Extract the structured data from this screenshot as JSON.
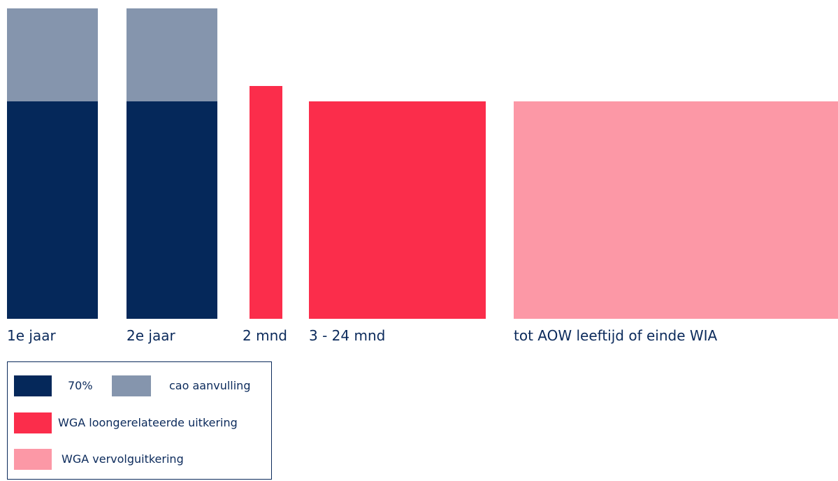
{
  "chart_data": {
    "type": "bar",
    "title": "",
    "xlabel": "",
    "ylabel": "",
    "categories": [
      "1e jaar",
      "2e jaar",
      "2 mnd",
      "3 - 24 mnd",
      "tot AOW leeftijd of einde WIA"
    ],
    "ylim": [
      0,
      100
    ],
    "grid": false,
    "legend_position": "bottom-left",
    "series": [
      {
        "key": "base",
        "color": "#05285a",
        "values": [
          70,
          70,
          null,
          null,
          null
        ]
      },
      {
        "key": "cao",
        "color": "#8595ad",
        "values": [
          30,
          30,
          null,
          null,
          null
        ]
      },
      {
        "key": "loon",
        "color": "#fb2d4b",
        "values": [
          null,
          null,
          75,
          70,
          null
        ]
      },
      {
        "key": "vervolg",
        "color": "#fc98a6",
        "values": [
          null,
          null,
          null,
          null,
          70
        ]
      }
    ]
  },
  "legend": {
    "items": [
      {
        "key": "base",
        "label": "70%",
        "color": "#05285a"
      },
      {
        "key": "cao",
        "label": "cao aanvulling",
        "color": "#8595ad"
      },
      {
        "key": "loon",
        "label": "WGA loongerelateerde uitkering",
        "color": "#fb2d4b"
      },
      {
        "key": "vervolg",
        "label": "WGA vervolguitkering",
        "color": "#fc98a6"
      }
    ]
  }
}
